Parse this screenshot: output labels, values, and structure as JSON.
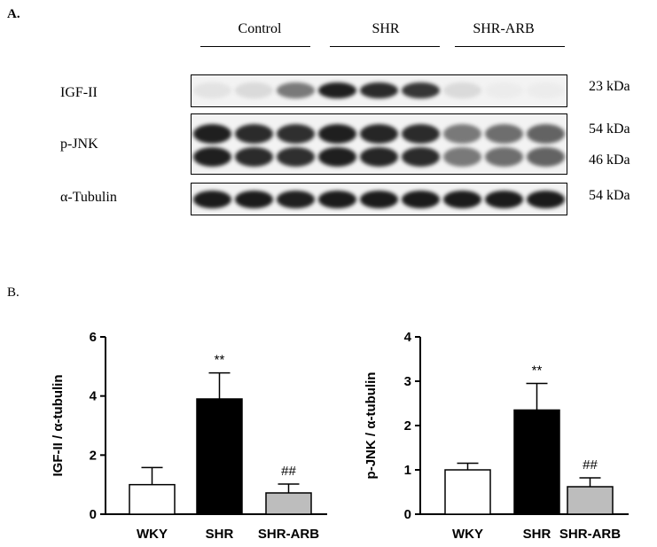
{
  "panel_a": {
    "label": "A.",
    "groups": [
      "Control",
      "SHR",
      "SHR-ARB"
    ],
    "rows": [
      {
        "label": "IGF-II",
        "markers": [
          "23 kDa"
        ],
        "intensities": [
          0.08,
          0.12,
          0.55,
          0.95,
          0.9,
          0.85,
          0.12,
          0.04,
          0.04
        ]
      },
      {
        "label": "p-JNK",
        "markers": [
          "54 kDa",
          "46 kDa"
        ],
        "intensities": [
          0.95,
          0.9,
          0.88,
          0.95,
          0.92,
          0.9,
          0.55,
          0.6,
          0.65
        ]
      },
      {
        "label": "α-Tubulin",
        "markers": [
          "54 kDa"
        ],
        "intensities": [
          0.97,
          0.97,
          0.95,
          0.97,
          0.97,
          0.97,
          0.97,
          0.97,
          0.97
        ]
      }
    ]
  },
  "panel_b": {
    "label": "B."
  },
  "chart_data": [
    {
      "type": "bar",
      "ylabel": "IGF-II / α-tubulin",
      "categories": [
        "WKY",
        "SHR",
        "SHR-ARB"
      ],
      "values": [
        1.0,
        3.9,
        0.72
      ],
      "errors": [
        0.58,
        0.88,
        0.3
      ],
      "annotations": [
        "",
        "**",
        "##"
      ],
      "bar_colors": [
        "#ffffff",
        "#000000",
        "#bdbdbd"
      ],
      "ylim": [
        0,
        6
      ],
      "yticks": [
        0,
        2,
        4,
        6
      ]
    },
    {
      "type": "bar",
      "ylabel": "p-JNK / α-tubulin",
      "categories": [
        "WKY",
        "SHR",
        "SHR-ARB"
      ],
      "values": [
        1.0,
        2.35,
        0.62
      ],
      "errors": [
        0.15,
        0.6,
        0.2
      ],
      "annotations": [
        "",
        "**",
        "##"
      ],
      "bar_colors": [
        "#ffffff",
        "#000000",
        "#bdbdbd"
      ],
      "ylim": [
        0,
        4
      ],
      "yticks": [
        0,
        1,
        2,
        3,
        4
      ]
    }
  ]
}
